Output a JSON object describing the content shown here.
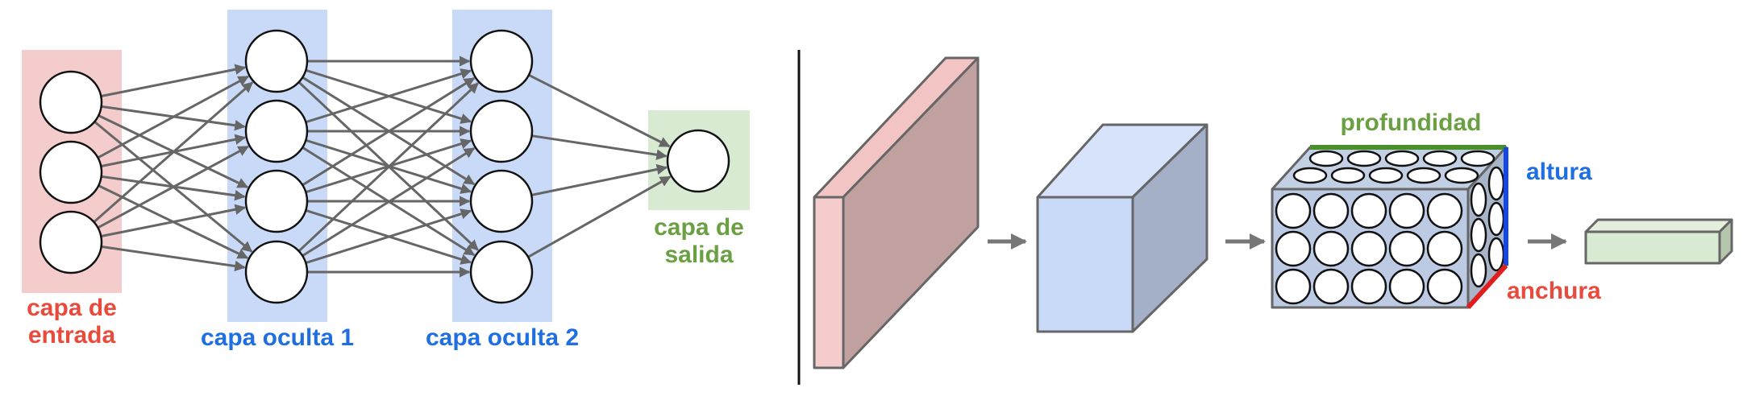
{
  "labels": {
    "input_layer": [
      "capa de",
      "entrada"
    ],
    "hidden_layer_1": "capa oculta 1",
    "hidden_layer_2": "capa oculta 2",
    "output_layer": [
      "capa de",
      "salida"
    ],
    "depth": "profundidad",
    "height": "altura",
    "width": "anchura"
  },
  "network": {
    "layer_sizes": [
      3,
      4,
      4,
      1
    ],
    "fully_connected": true
  },
  "colors": {
    "input": "#e84a3c",
    "hidden": "#1f6fe0",
    "output": "#6aa042",
    "input_bg": "#f4cccc",
    "hidden_bg": "#c9daf8",
    "output_bg": "#d9ead3",
    "depth_line": "#4b8f2a",
    "height_line": "#1447e6",
    "width_line": "#e01e1e"
  }
}
